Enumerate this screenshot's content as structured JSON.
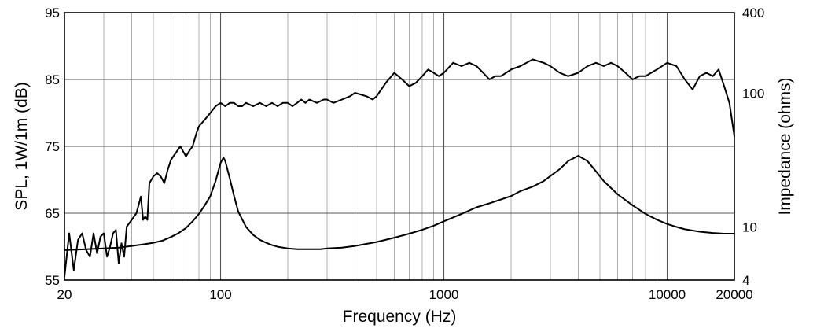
{
  "chart_data": {
    "type": "line",
    "title": "",
    "xlabel": "Frequency (Hz)",
    "ylabel": "SPL, 1W/1m (dB)",
    "y2label": "Impedance (ohms)",
    "xscale": "log",
    "xlim": [
      20,
      20000
    ],
    "ylim": [
      55,
      95
    ],
    "y2scale": "log",
    "y2lim": [
      4,
      400
    ],
    "grid": true,
    "x_ticks": [
      "20",
      "100",
      "1000",
      "10000",
      "20000"
    ],
    "x_tick_values": [
      20,
      100,
      1000,
      10000,
      20000
    ],
    "y_ticks": [
      "55",
      "65",
      "75",
      "85",
      "95"
    ],
    "y_tick_values": [
      55,
      65,
      75,
      85,
      95
    ],
    "y2_ticks": [
      "4",
      "10",
      "100",
      "400"
    ],
    "y2_tick_values": [
      4,
      10,
      100,
      400
    ],
    "series": [
      {
        "axis": "left",
        "x": [
          20,
          21,
          22,
          23,
          24,
          25,
          26,
          27,
          28,
          29,
          30,
          31,
          32,
          33,
          34,
          35,
          36,
          37,
          38,
          40,
          42,
          44,
          45,
          46,
          47,
          48,
          50,
          52,
          54,
          56,
          58,
          60,
          63,
          66,
          70,
          73,
          75,
          78,
          80,
          85,
          90,
          95,
          100,
          105,
          110,
          115,
          120,
          125,
          130,
          140,
          150,
          160,
          170,
          180,
          190,
          200,
          210,
          220,
          230,
          240,
          250,
          270,
          290,
          300,
          320,
          350,
          380,
          400,
          450,
          480,
          500,
          550,
          600,
          650,
          700,
          750,
          800,
          850,
          900,
          950,
          1000,
          1100,
          1200,
          1300,
          1400,
          1500,
          1600,
          1700,
          1800,
          1900,
          2000,
          2200,
          2500,
          2800,
          3000,
          3300,
          3600,
          4000,
          4400,
          4800,
          5200,
          5600,
          6000,
          6500,
          7000,
          7500,
          8000,
          9000,
          10000,
          11000,
          12000,
          13000,
          14000,
          15000,
          16000,
          17000,
          18000,
          19000,
          20000
        ],
        "y": [
          55.5,
          62.0,
          56.5,
          61.0,
          62.0,
          59.5,
          58.5,
          62.0,
          59.0,
          61.5,
          62.0,
          58.5,
          60.0,
          62.0,
          62.5,
          57.5,
          60.5,
          58.5,
          63.0,
          64.0,
          65.0,
          67.5,
          64.0,
          64.5,
          64.0,
          69.5,
          70.5,
          71.0,
          70.5,
          69.5,
          71.5,
          73.0,
          74.0,
          75.0,
          73.5,
          74.5,
          75.0,
          77.0,
          78.0,
          79.0,
          80.0,
          81.0,
          81.5,
          81.0,
          81.5,
          81.5,
          81.0,
          81.0,
          81.5,
          81.0,
          81.5,
          81.0,
          81.5,
          81.0,
          81.5,
          81.5,
          81.0,
          81.5,
          82.0,
          81.5,
          82.0,
          81.5,
          82.0,
          82.0,
          81.5,
          82.0,
          82.5,
          83.0,
          82.5,
          82.0,
          82.5,
          84.5,
          86.0,
          85.0,
          84.0,
          84.5,
          85.5,
          86.5,
          86.0,
          85.5,
          86.0,
          87.5,
          87.0,
          87.5,
          87.0,
          86.0,
          85.0,
          85.5,
          85.5,
          86.0,
          86.5,
          87.0,
          88.0,
          87.5,
          87.0,
          86.0,
          85.5,
          86.0,
          87.0,
          87.5,
          87.0,
          87.5,
          87.0,
          86.0,
          85.0,
          85.5,
          85.5,
          86.5,
          87.5,
          87.0,
          85.0,
          83.5,
          85.5,
          86.0,
          85.5,
          86.5,
          84.0,
          81.5,
          76.5
        ]
      },
      {
        "axis": "right",
        "x": [
          20,
          25,
          30,
          35,
          40,
          45,
          50,
          55,
          60,
          65,
          70,
          75,
          80,
          85,
          90,
          95,
          100,
          103,
          105,
          110,
          115,
          120,
          130,
          140,
          150,
          160,
          170,
          180,
          200,
          220,
          250,
          280,
          300,
          350,
          400,
          500,
          600,
          700,
          800,
          900,
          1000,
          1200,
          1400,
          1600,
          1800,
          2000,
          2200,
          2500,
          2800,
          3000,
          3300,
          3600,
          4000,
          4400,
          4800,
          5200,
          6000,
          7000,
          8000,
          9000,
          10000,
          11000,
          12000,
          14000,
          16000,
          18000,
          20000
        ],
        "y": [
          6.7,
          6.8,
          6.9,
          7.0,
          7.2,
          7.4,
          7.6,
          7.9,
          8.4,
          9.0,
          9.8,
          11.0,
          12.5,
          14.5,
          17.0,
          22.0,
          30.0,
          33.0,
          31.0,
          23.0,
          17.0,
          13.0,
          10.0,
          8.7,
          8.0,
          7.6,
          7.3,
          7.1,
          6.9,
          6.8,
          6.8,
          6.8,
          6.9,
          7.0,
          7.2,
          7.7,
          8.3,
          8.9,
          9.5,
          10.2,
          11.0,
          12.5,
          14.0,
          15.0,
          16.0,
          17.0,
          18.5,
          20.0,
          22.0,
          24.0,
          27.0,
          31.0,
          34.0,
          31.0,
          26.0,
          22.0,
          17.5,
          14.5,
          12.5,
          11.3,
          10.5,
          10.0,
          9.6,
          9.2,
          9.0,
          8.9,
          8.9
        ]
      }
    ]
  }
}
